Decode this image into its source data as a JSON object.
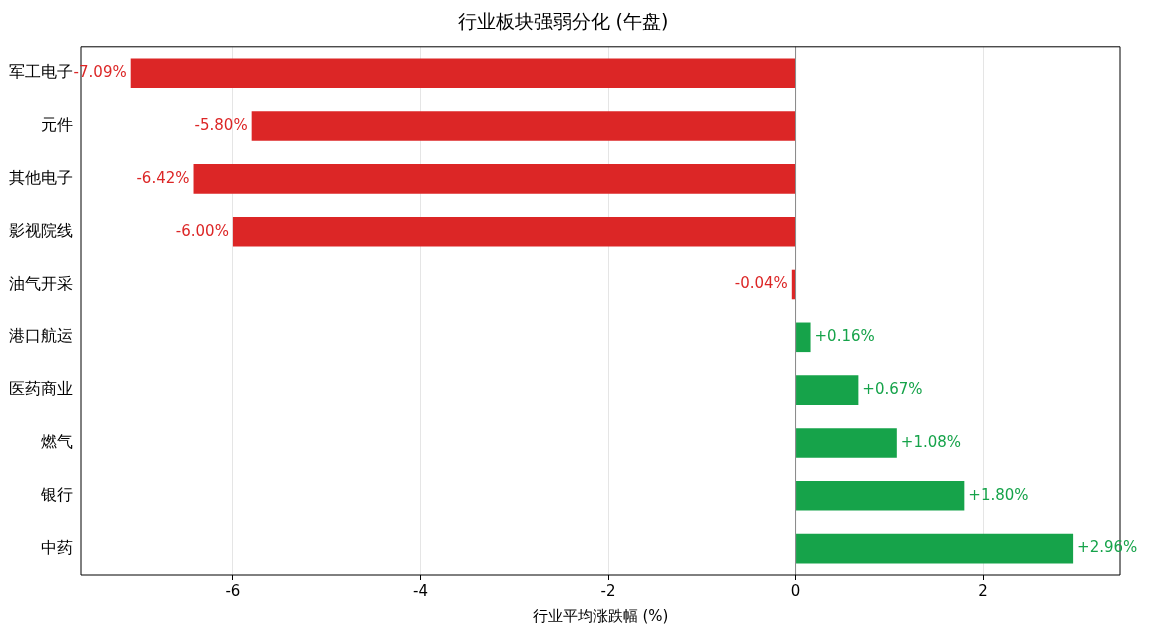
{
  "chart_data": {
    "type": "bar",
    "orientation": "horizontal",
    "title": "行业板块强弱分化 (午盘)",
    "xlabel": "行业平均涨跌幅 (%)",
    "categories": [
      "军工电子",
      "元件",
      "其他电子",
      "影视院线",
      "油气开采",
      "港口航运",
      "医药商业",
      "燃气",
      "银行",
      "中药"
    ],
    "values": [
      -7.09,
      -5.8,
      -6.42,
      -6.0,
      -0.04,
      0.16,
      0.67,
      1.08,
      1.8,
      2.96
    ],
    "colors": [
      "#dc2626",
      "#dc2626",
      "#dc2626",
      "#dc2626",
      "#dc2626",
      "#16a34a",
      "#16a34a",
      "#16a34a",
      "#16a34a",
      "#16a34a"
    ],
    "value_labels": [
      "-7.09%",
      "-5.80%",
      "-6.42%",
      "-6.00%",
      "-0.04%",
      "+0.16%",
      "+0.67%",
      "+1.08%",
      "+1.80%",
      "+2.96%"
    ],
    "xlim": [
      -7.62,
      3.46
    ],
    "xticks": [
      -6,
      -4,
      -2,
      0,
      2
    ],
    "grid": "x",
    "ref_lines": [
      {
        "axis": "x",
        "value": 0,
        "color": "#888888"
      }
    ]
  }
}
